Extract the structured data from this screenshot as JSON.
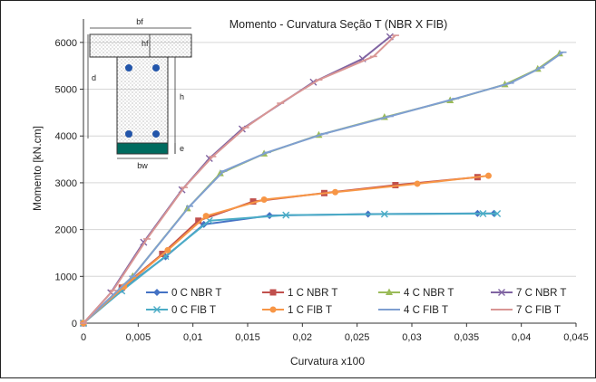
{
  "chart_data": {
    "type": "line",
    "title": "Momento - Curvatura  Seção T (NBR X FIB)",
    "xlabel": "Curvatura x100",
    "ylabel": "Momento [kN.cm]",
    "xlim": [
      0,
      0.045
    ],
    "ylim": [
      0,
      6500
    ],
    "x_ticks": [
      "0",
      "0,005",
      "0,01",
      "0,015",
      "0,02",
      "0,025",
      "0,03",
      "0,035",
      "0,04",
      "0,045"
    ],
    "y_ticks": [
      "0",
      "1000",
      "2000",
      "3000",
      "4000",
      "5000",
      "6000"
    ],
    "x_tick_values": [
      0,
      0.005,
      0.01,
      0.015,
      0.02,
      0.025,
      0.03,
      0.035,
      0.04,
      0.045
    ],
    "y_tick_values": [
      0,
      1000,
      2000,
      3000,
      4000,
      5000,
      6000
    ],
    "grid": "horizontal",
    "legend_position": "bottom-inside",
    "series": [
      {
        "name": "0 C NBR T",
        "color": "#4472C4",
        "marker": "diamond",
        "points": [
          [
            0,
            0
          ],
          [
            0.0035,
            720
          ],
          [
            0.0075,
            1420
          ],
          [
            0.011,
            2110
          ],
          [
            0.017,
            2300
          ],
          [
            0.026,
            2330
          ],
          [
            0.036,
            2345
          ],
          [
            0.0375,
            2345
          ]
        ]
      },
      {
        "name": "1 C NBR T",
        "color": "#C0504D",
        "marker": "square",
        "points": [
          [
            0,
            0
          ],
          [
            0.0035,
            760
          ],
          [
            0.0072,
            1480
          ],
          [
            0.0105,
            2190
          ],
          [
            0.0155,
            2600
          ],
          [
            0.022,
            2780
          ],
          [
            0.0285,
            2950
          ],
          [
            0.036,
            3120
          ]
        ]
      },
      {
        "name": "4 C NBR T",
        "color": "#9BBB59",
        "marker": "triangle",
        "points": [
          [
            0,
            0
          ],
          [
            0.0045,
            1000
          ],
          [
            0.0095,
            2450
          ],
          [
            0.0125,
            3200
          ],
          [
            0.0165,
            3620
          ],
          [
            0.0215,
            4020
          ],
          [
            0.0275,
            4400
          ],
          [
            0.0335,
            4760
          ],
          [
            0.0385,
            5100
          ],
          [
            0.0415,
            5430
          ],
          [
            0.0435,
            5760
          ]
        ]
      },
      {
        "name": "7 C NBR T",
        "color": "#8064A2",
        "marker": "x",
        "points": [
          [
            0,
            0
          ],
          [
            0.0025,
            650
          ],
          [
            0.0055,
            1730
          ],
          [
            0.009,
            2850
          ],
          [
            0.0115,
            3520
          ],
          [
            0.0145,
            4150
          ],
          [
            0.021,
            5150
          ],
          [
            0.0255,
            5650
          ],
          [
            0.028,
            6120
          ]
        ]
      },
      {
        "name": "0 C FIB T",
        "color": "#4BACC6",
        "marker": "x",
        "points": [
          [
            0,
            0
          ],
          [
            0.0035,
            690
          ],
          [
            0.0075,
            1430
          ],
          [
            0.0115,
            2190
          ],
          [
            0.0185,
            2310
          ],
          [
            0.0275,
            2330
          ],
          [
            0.0365,
            2340
          ],
          [
            0.0378,
            2340
          ]
        ]
      },
      {
        "name": "1 C FIB T",
        "color": "#F79646",
        "marker": "circle",
        "points": [
          [
            0,
            0
          ],
          [
            0.0037,
            780
          ],
          [
            0.0077,
            1560
          ],
          [
            0.0112,
            2290
          ],
          [
            0.0165,
            2640
          ],
          [
            0.023,
            2800
          ],
          [
            0.0305,
            2980
          ],
          [
            0.037,
            3150
          ]
        ]
      },
      {
        "name": "4 C FIB T",
        "color": "#7F9FD1",
        "marker": "dash",
        "points": [
          [
            0,
            0
          ],
          [
            0.0045,
            1000
          ],
          [
            0.0097,
            2500
          ],
          [
            0.0128,
            3250
          ],
          [
            0.0168,
            3650
          ],
          [
            0.022,
            4050
          ],
          [
            0.028,
            4420
          ],
          [
            0.034,
            4800
          ],
          [
            0.039,
            5130
          ],
          [
            0.0418,
            5460
          ],
          [
            0.0438,
            5790
          ]
        ]
      },
      {
        "name": "7 C FIB T",
        "color": "#D99694",
        "marker": "dash",
        "points": [
          [
            0,
            0
          ],
          [
            0.0027,
            700
          ],
          [
            0.0058,
            1800
          ],
          [
            0.0092,
            2900
          ],
          [
            0.0118,
            3560
          ],
          [
            0.0148,
            4180
          ],
          [
            0.018,
            4700
          ],
          [
            0.0215,
            5200
          ],
          [
            0.0265,
            5700
          ],
          [
            0.0285,
            6150
          ]
        ]
      }
    ],
    "inset_labels": {
      "bf": "bf",
      "hf": "hf",
      "d": "d",
      "h": "h",
      "e": "e",
      "bw": "bw"
    }
  }
}
